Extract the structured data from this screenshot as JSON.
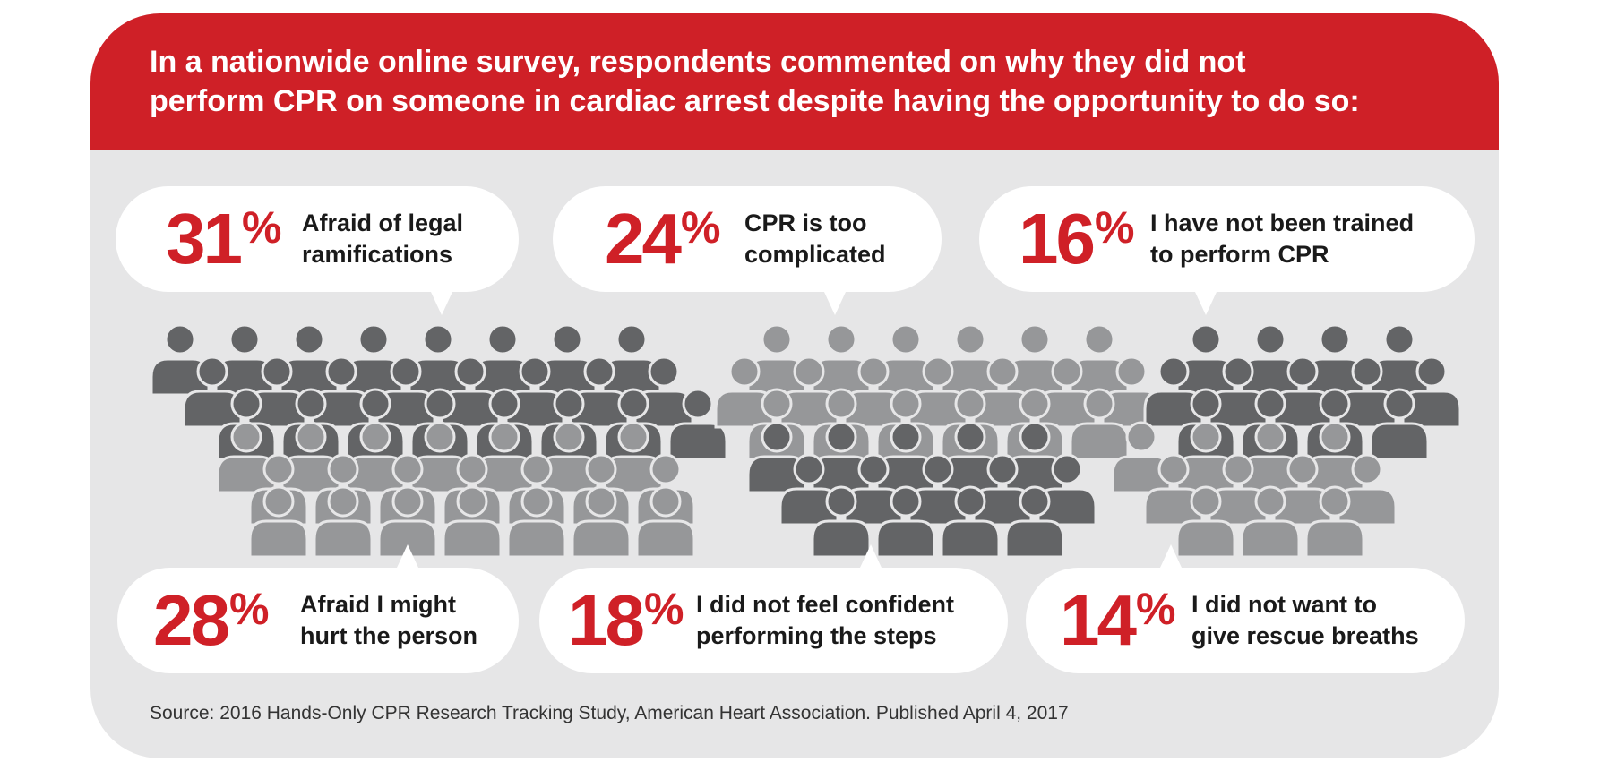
{
  "title": {
    "line1": "In a nationwide online survey, respondents commented on why they did not",
    "line2": "perform CPR on someone in cardiac arrest despite having the opportunity to do so:"
  },
  "percent_sign": "%",
  "reasons": [
    {
      "value": "31",
      "line1": "Afraid of legal",
      "line2": "ramifications"
    },
    {
      "value": "24",
      "line1": "CPR is too",
      "line2": "complicated"
    },
    {
      "value": "16",
      "line1": "I have not been trained",
      "line2": "to perform CPR"
    },
    {
      "value": "28",
      "line1": "Afraid I might",
      "line2": "hurt the person"
    },
    {
      "value": "18",
      "line1": "I did not feel confident",
      "line2": "performing the steps"
    },
    {
      "value": "14",
      "line1": "I did not want to",
      "line2": "give rescue breaths"
    }
  ],
  "source": "Source: 2016 Hands-Only CPR Research Tracking Study, American Heart Association. Published April 4, 2017",
  "colors": {
    "red": "#cf2027",
    "dark_figure": "#636466",
    "light_figure": "#969799",
    "panel": "#e6e6e7"
  },
  "chart_data": {
    "type": "pictogram",
    "title": "In a nationwide online survey, respondents commented on why they did not perform CPR on someone in cardiac arrest despite having the opportunity to do so:",
    "unit": "%",
    "categories": [
      "Afraid of legal ramifications",
      "CPR is too complicated",
      "I have not been trained to perform CPR",
      "Afraid I might hurt the person",
      "I did not feel confident performing the steps",
      "I did not want to give rescue breaths"
    ],
    "values": [
      31,
      24,
      16,
      28,
      18,
      14
    ]
  }
}
